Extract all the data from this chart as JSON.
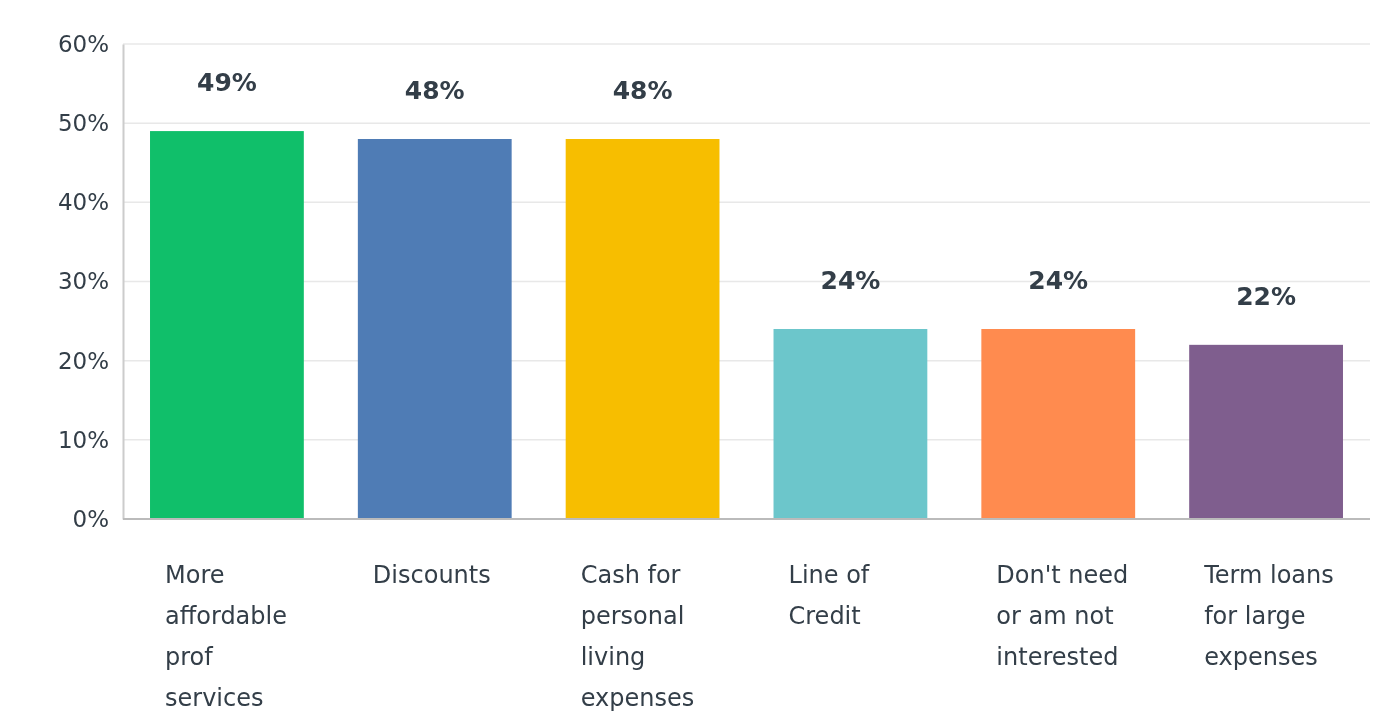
{
  "chart_data": {
    "type": "bar",
    "categories": [
      "More affordable prof services",
      "Discounts",
      "Cash for personal living expenses",
      "Line of Credit",
      "Don't need or am not interested",
      "Term loans for large expenses"
    ],
    "values": [
      49,
      48,
      48,
      24,
      24,
      22
    ],
    "colors": [
      "#10bf6a",
      "#4f7cb5",
      "#f7be00",
      "#6cc6cb",
      "#ff8b4f",
      "#7f5e8e"
    ],
    "data_labels": true,
    "value_labels": [
      "49%",
      "48%",
      "48%",
      "24%",
      "24%",
      "22%"
    ],
    "ylim": [
      0,
      60
    ],
    "yticks": [
      {
        "value": 0,
        "label": "0%"
      },
      {
        "value": 10,
        "label": "10%"
      },
      {
        "value": 20,
        "label": "20%"
      },
      {
        "value": 30,
        "label": "30%"
      },
      {
        "value": 40,
        "label": "40%"
      },
      {
        "value": 50,
        "label": "50%"
      },
      {
        "value": 60,
        "label": "60%"
      }
    ],
    "grid": "y"
  }
}
